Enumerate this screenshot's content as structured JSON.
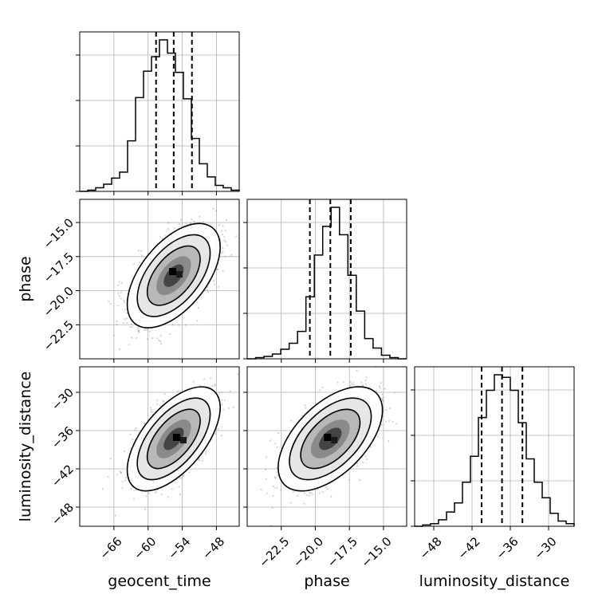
{
  "chart_data": {
    "type": "corner",
    "parameters": [
      "geocent_time",
      "phase",
      "luminosity_distance"
    ],
    "histograms": [
      {
        "parameter": "geocent_time",
        "bins_range": [
          -72,
          -44
        ],
        "counts": [
          0,
          1,
          3,
          6,
          11,
          16,
          42,
          78,
          100,
          112,
          126,
          115,
          99,
          77,
          44,
          23,
          12,
          5,
          3,
          1
        ],
        "quantile_lines": [
          -58.6,
          -55.5,
          -52.3
        ]
      },
      {
        "parameter": "phase",
        "bins_range": [
          -25,
          -13.3
        ],
        "counts": [
          0,
          1,
          2,
          4,
          8,
          13,
          23,
          52,
          87,
          111,
          127,
          104,
          70,
          40,
          17,
          9,
          3,
          1,
          0
        ],
        "quantile_lines": [
          -20.4,
          -18.9,
          -17.4
        ]
      },
      {
        "parameter": "luminosity_distance",
        "bins_range": [
          -51,
          -26
        ],
        "counts": [
          0,
          1,
          2,
          5,
          11,
          18,
          34,
          54,
          84,
          105,
          117,
          115,
          105,
          80,
          52,
          34,
          22,
          10,
          4,
          2
        ],
        "quantile_lines": [
          -40.5,
          -37.3,
          -34.1
        ]
      }
    ],
    "joint_distributions": [
      {
        "x": "geocent_time",
        "y": "phase",
        "x_center": -55.5,
        "y_center": -18.9,
        "x_sd": 3.2,
        "y_sd": 1.5,
        "correlation": 0.55,
        "peak": [
          -55.2,
          -18.8
        ]
      },
      {
        "x": "geocent_time",
        "y": "luminosity_distance",
        "x_center": -55.5,
        "y_center": -37.3,
        "x_sd": 3.2,
        "y_sd": 3.2,
        "correlation": 0.6,
        "peak": [
          -54.5,
          -37.5
        ]
      },
      {
        "x": "phase",
        "y": "luminosity_distance",
        "x_center": -18.9,
        "y_center": -37.3,
        "x_sd": 1.5,
        "y_sd": 3.2,
        "correlation": 0.55,
        "peak": [
          -18.9,
          -37.5
        ]
      }
    ],
    "axes": {
      "geocent_time": {
        "range": [
          -72,
          -44
        ],
        "ticks": [
          -66,
          -60,
          -54,
          -48
        ],
        "tick_labels": [
          "−66",
          "−60",
          "−54",
          "−48"
        ]
      },
      "phase": {
        "range": [
          -25,
          -13.3
        ],
        "ticks": [
          -22.5,
          -20.0,
          -17.5,
          -15.0
        ],
        "tick_labels": [
          "−22.5",
          "−20.0",
          "−17.5",
          "−15.0"
        ]
      },
      "luminosity_distance": {
        "range": [
          -51,
          -26
        ],
        "ticks": [
          -48,
          -42,
          -36,
          -30
        ],
        "tick_labels": [
          "−48",
          "−42",
          "−36",
          "−30"
        ]
      }
    },
    "x_labels": [
      "geocent_time",
      "phase",
      "luminosity_distance"
    ],
    "y_labels": [
      "phase",
      "luminosity_distance"
    ],
    "grid": true,
    "colors": {
      "line": "#000000",
      "grid": "#b0b0b0",
      "scatter": "#7f7f7f",
      "density_fill": "#000000"
    }
  }
}
